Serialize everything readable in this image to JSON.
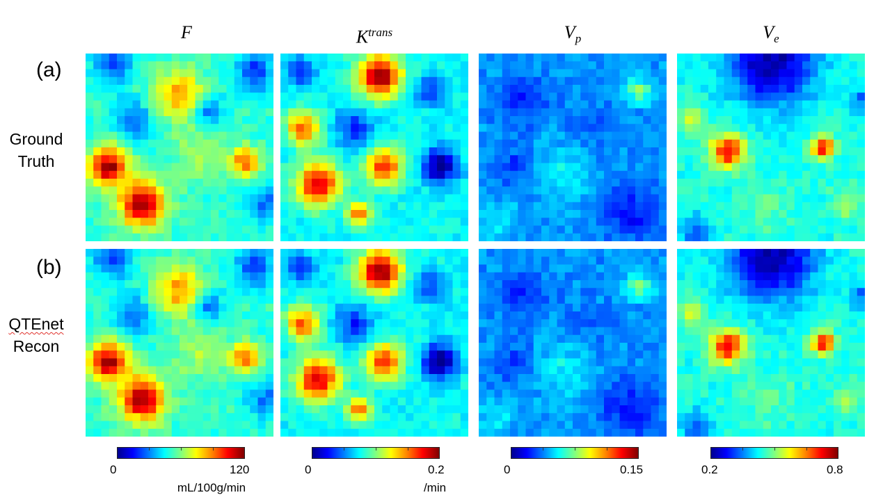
{
  "columns": [
    {
      "name": "F"
    },
    {
      "name": "K",
      "sup": "trans"
    },
    {
      "name": "V",
      "sub": "p"
    },
    {
      "name": "V",
      "sub": "e"
    }
  ],
  "rows": [
    {
      "tag": "(a)",
      "name_line1": "Ground",
      "name_line2": "Truth"
    },
    {
      "tag": "(b)",
      "name_line1": "QTEnet",
      "name_line2": "Recon"
    }
  ],
  "colorbars": [
    {
      "min": "0",
      "max": "120",
      "unit": "mL/100g/min"
    },
    {
      "min": "0",
      "max": "0.2",
      "unit": "/min"
    },
    {
      "min": "0",
      "max": "0.15",
      "unit": ""
    },
    {
      "min": "0.2",
      "max": "0.8",
      "unit": ""
    }
  ],
  "colormap": [
    "#00008f",
    "#0000ff",
    "#0080ff",
    "#00ffff",
    "#80ff80",
    "#ffff00",
    "#ff8000",
    "#ff0000",
    "#800000"
  ]
}
